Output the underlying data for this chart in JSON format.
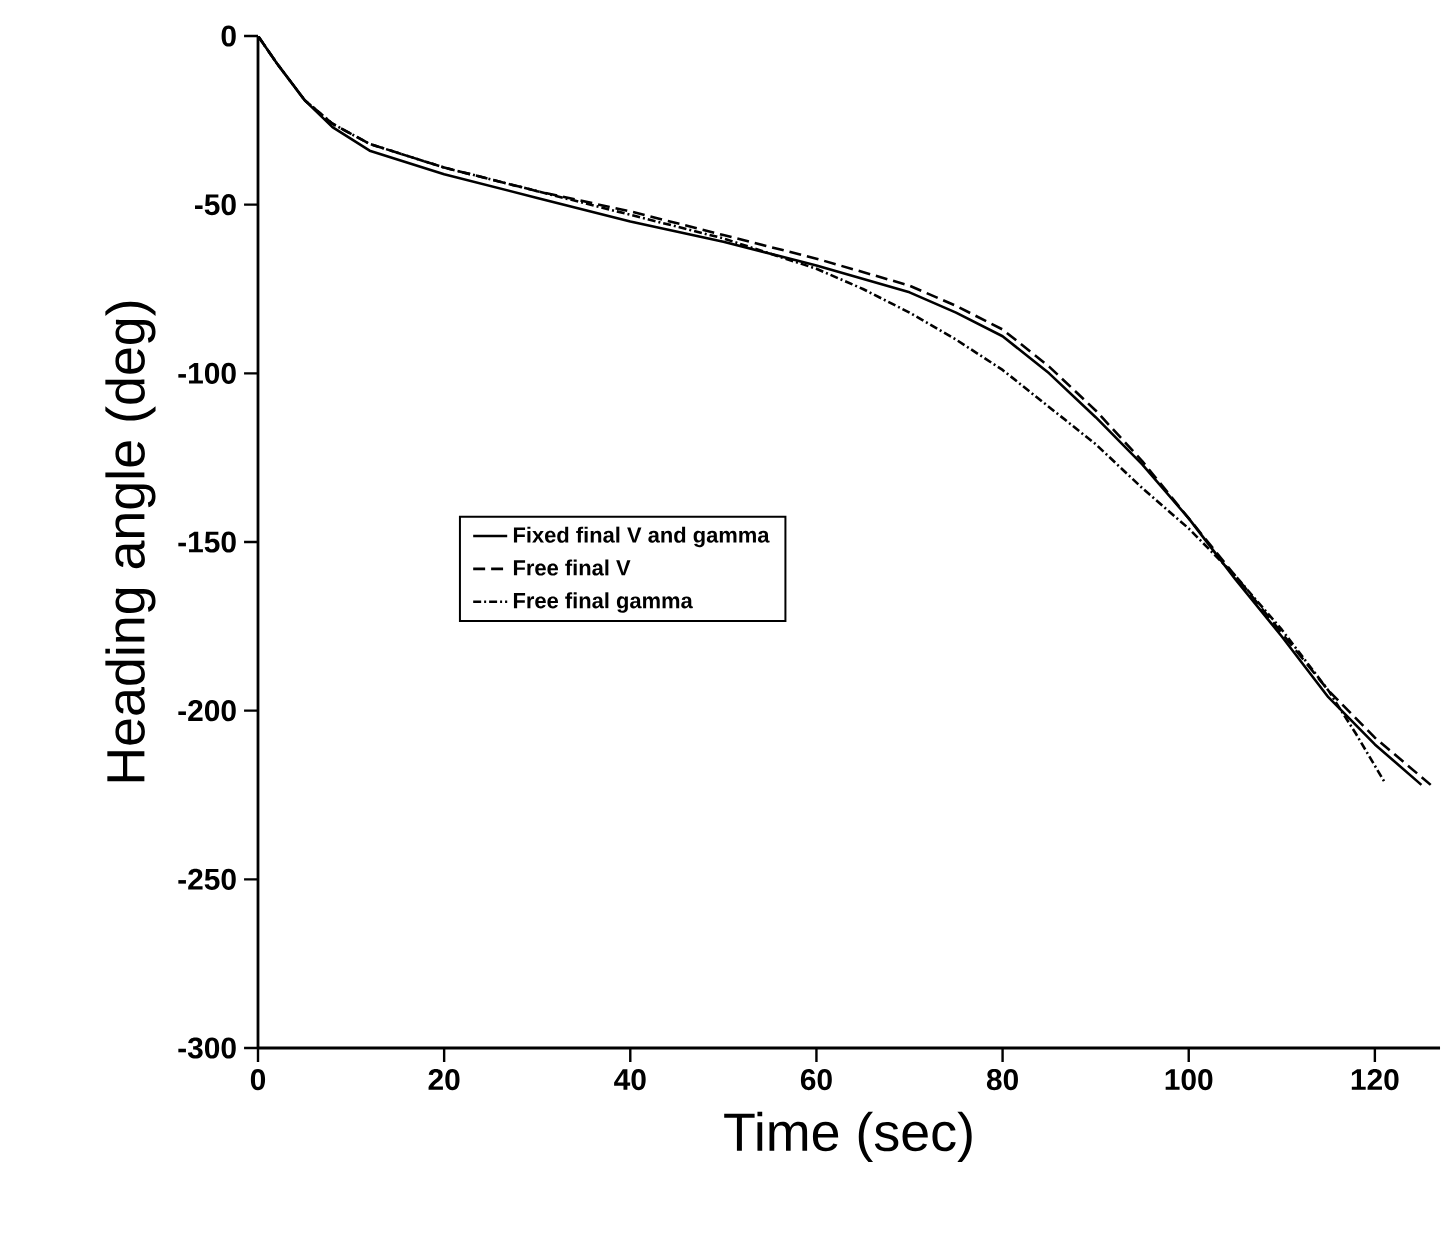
{
  "chart_data": {
    "type": "line",
    "xlabel": "Time (sec)",
    "ylabel": "Heading angle (deg)",
    "xlim": [
      0,
      127
    ],
    "ylim": [
      -300,
      0
    ],
    "xticks": [
      0,
      20,
      40,
      60,
      80,
      100,
      120
    ],
    "yticks": [
      -300,
      -250,
      -200,
      -150,
      -100,
      -50,
      0
    ],
    "grid": false,
    "legend": "center left",
    "series": [
      {
        "name": "Fixed final V and gamma",
        "color": "#000000",
        "line_style": "solid",
        "x": [
          0,
          2,
          5,
          8,
          12,
          20,
          30,
          40,
          50,
          60,
          70,
          75,
          80,
          85,
          90,
          95,
          100,
          105,
          110,
          115,
          120,
          125
        ],
        "values": [
          0,
          -8,
          -19,
          -27,
          -34,
          -41,
          -48,
          -55,
          -61,
          -68,
          -76,
          -82,
          -89,
          -100,
          -113,
          -127,
          -143,
          -161,
          -178,
          -196,
          -210,
          -222
        ]
      },
      {
        "name": "Free final V",
        "color": "#000000",
        "line_style": "dashed",
        "x": [
          0,
          2,
          5,
          8,
          12,
          20,
          30,
          40,
          50,
          60,
          70,
          75,
          80,
          85,
          90,
          95,
          100,
          105,
          110,
          115,
          120,
          126
        ],
        "values": [
          0,
          -8,
          -19,
          -26,
          -32,
          -39,
          -46,
          -52,
          -59,
          -66,
          -74,
          -80,
          -87,
          -98,
          -111,
          -126,
          -143,
          -160,
          -177,
          -194,
          -208,
          -222
        ]
      },
      {
        "name": "Free final gamma",
        "color": "#000000",
        "line_style": "dotted",
        "x": [
          0,
          2,
          5,
          8,
          12,
          20,
          30,
          40,
          50,
          60,
          65,
          70,
          75,
          80,
          85,
          90,
          95,
          100,
          105,
          110,
          115,
          118,
          121
        ],
        "values": [
          0,
          -8,
          -19,
          -26,
          -32,
          -39,
          -46,
          -53,
          -60,
          -69,
          -75,
          -82,
          -90,
          -99,
          -110,
          -121,
          -134,
          -146,
          -160,
          -176,
          -194,
          -207,
          -221
        ]
      }
    ]
  }
}
